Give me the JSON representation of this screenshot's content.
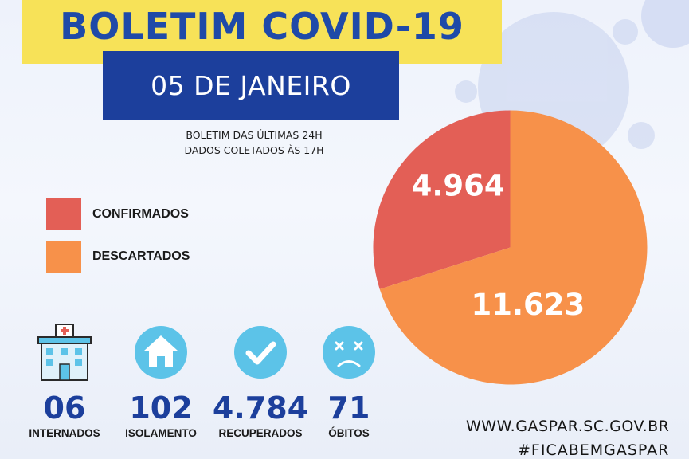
{
  "header": {
    "title": "BOLETIM COVID-19",
    "date": "05 DE JANEIRO",
    "note_line1": "BOLETIM DAS ÚLTIMAS 24H",
    "note_line2": "DADOS COLETADOS ÀS  17H"
  },
  "legend": [
    {
      "label": "CONFIRMADOS",
      "color": "#e35f56"
    },
    {
      "label": "DESCARTADOS",
      "color": "#f7914a"
    }
  ],
  "chart_data": {
    "type": "pie",
    "slices": [
      {
        "label": "CONFIRMADOS",
        "value": 4964,
        "display": "4.964",
        "color": "#e35f56"
      },
      {
        "label": "DESCARTADOS",
        "value": 11623,
        "display": "11.623",
        "color": "#f7914a"
      }
    ]
  },
  "stats": [
    {
      "value": "06",
      "label": "INTERNADOS",
      "icon": "hospital-icon"
    },
    {
      "value": "102",
      "label": "ISOLAMENTO",
      "icon": "house-icon"
    },
    {
      "value": "4.784",
      "label": "RECUPERADOS",
      "icon": "checkmark-icon"
    },
    {
      "value": "71",
      "label": "ÓBITOS",
      "icon": "sad-face-icon"
    }
  ],
  "footer": {
    "site": "WWW.GASPAR.SC.GOV.BR",
    "hashtag": "#FICABEMGASPAR"
  },
  "colors": {
    "brand_blue": "#1c3f9c",
    "title_yellow": "#f7e258",
    "icon_blue": "#5cc3e8"
  }
}
